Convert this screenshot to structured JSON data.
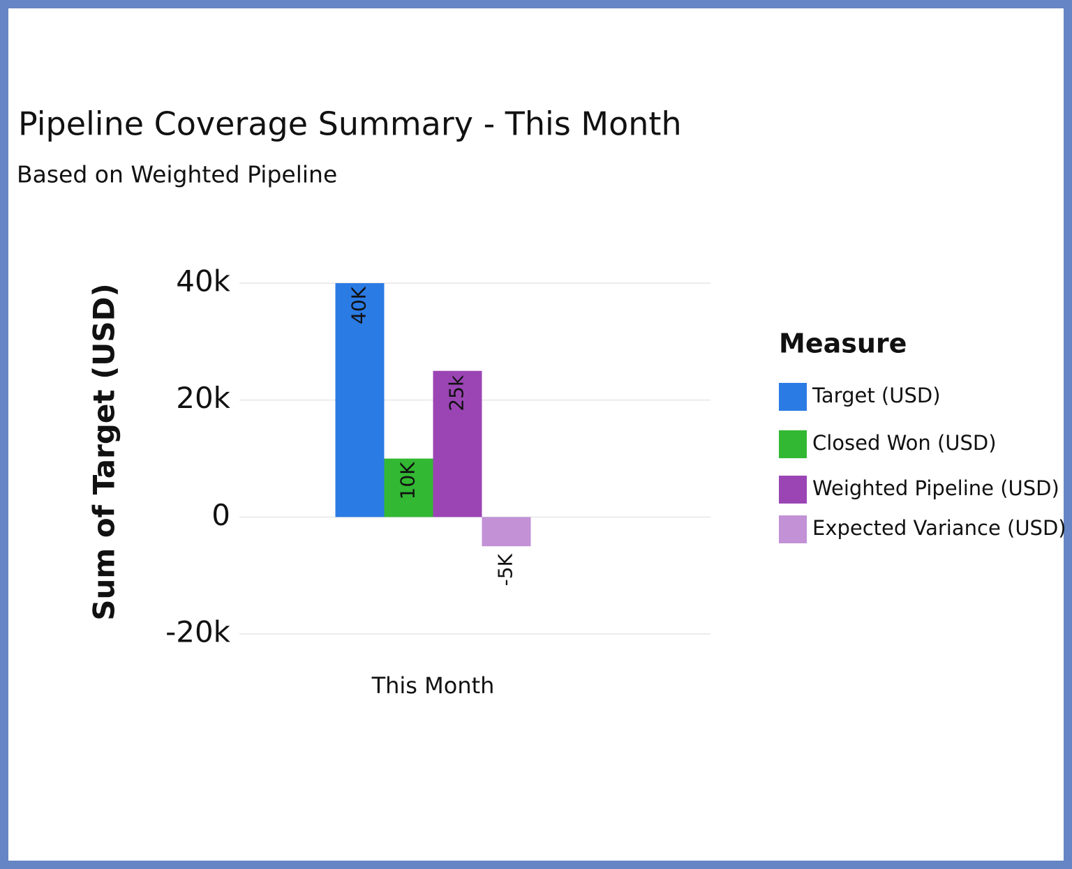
{
  "chart_data": {
    "type": "bar",
    "title": "Pipeline Coverage Summary - This Month",
    "subtitle": "Based on Weighted Pipeline",
    "y_label": "Sum of Target (USD)",
    "categories": [
      "This Month"
    ],
    "legend_title": "Measure",
    "legend": "right",
    "grid": true,
    "series": [
      {
        "name": "Target (USD)",
        "color": "#2b7be4",
        "values": [
          40000
        ],
        "value_labels": [
          "40K"
        ]
      },
      {
        "name": "Closed Won (USD)",
        "color": "#33b833",
        "values": [
          10000
        ],
        "value_labels": [
          "10K"
        ]
      },
      {
        "name": "Weighted Pipeline (USD)",
        "color": "#9b45b5",
        "values": [
          25000
        ],
        "value_labels": [
          "25k"
        ]
      },
      {
        "name": "Expected Variance (USD)",
        "color": "#c291d6",
        "values": [
          -5000
        ],
        "value_labels": [
          "-5K"
        ]
      }
    ],
    "ylim": [
      -20000,
      40000
    ],
    "yticks": [
      {
        "value": -20000,
        "label": "-20k"
      },
      0,
      {
        "value": 20000,
        "label": "20k"
      },
      {
        "value": 40000,
        "label": "40k"
      }
    ]
  }
}
